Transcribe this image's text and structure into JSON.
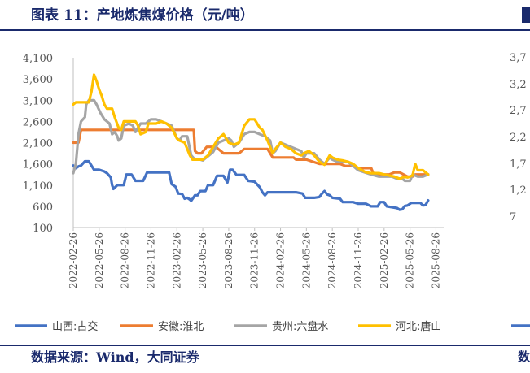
{
  "title": "图表 11：产地炼焦煤价格（元/吨）",
  "source": "数据来源：Wind，大同证券",
  "right_panel_peek": {
    "ticks": [
      "3,7",
      "3,2",
      "2,7",
      "2,2",
      "1,7",
      "1,2",
      "7"
    ],
    "source_fragment": "数"
  },
  "chart_data": {
    "type": "line",
    "title": "产地炼焦煤价格（元/吨）",
    "ylim": [
      100,
      4100
    ],
    "yticks": [
      100,
      600,
      1100,
      1600,
      2100,
      2600,
      3100,
      3600,
      4100
    ],
    "ytick_labels": [
      "100",
      "600",
      "1,100",
      "1,600",
      "2,100",
      "2,600",
      "3,100",
      "3,600",
      "4,100"
    ],
    "xticks": [
      "2022-02-26",
      "2022-05-26",
      "2022-08-26",
      "2022-11-26",
      "2023-02-26",
      "2023-05-26",
      "2023-08-26",
      "2023-11-26",
      "2024-02-26",
      "2024-05-26",
      "2024-08-26",
      "2024-11-26",
      "2025-02-26",
      "2025-05-26",
      "2025-08-26"
    ],
    "x_range": [
      0,
      14.3
    ],
    "legend_position": "bottom",
    "series": [
      {
        "name": "山西:古交",
        "color": "#4472c4",
        "points": [
          [
            0,
            1560
          ],
          [
            0.1,
            1500
          ],
          [
            0.2,
            1540
          ],
          [
            0.3,
            1560
          ],
          [
            0.45,
            1660
          ],
          [
            0.6,
            1660
          ],
          [
            0.7,
            1560
          ],
          [
            0.8,
            1460
          ],
          [
            1.0,
            1460
          ],
          [
            1.2,
            1420
          ],
          [
            1.3,
            1380
          ],
          [
            1.45,
            1280
          ],
          [
            1.5,
            1100
          ],
          [
            1.55,
            1010
          ],
          [
            1.7,
            1100
          ],
          [
            1.8,
            1100
          ],
          [
            1.95,
            1100
          ],
          [
            2.05,
            1350
          ],
          [
            2.25,
            1350
          ],
          [
            2.4,
            1200
          ],
          [
            2.7,
            1200
          ],
          [
            2.85,
            1400
          ],
          [
            3.7,
            1400
          ],
          [
            3.8,
            1120
          ],
          [
            3.95,
            1060
          ],
          [
            4.05,
            900
          ],
          [
            4.2,
            890
          ],
          [
            4.3,
            780
          ],
          [
            4.4,
            800
          ],
          [
            4.5,
            760
          ],
          [
            4.55,
            730
          ],
          [
            4.7,
            860
          ],
          [
            4.8,
            860
          ],
          [
            4.9,
            960
          ],
          [
            5.1,
            960
          ],
          [
            5.2,
            1100
          ],
          [
            5.4,
            1100
          ],
          [
            5.55,
            1320
          ],
          [
            5.8,
            1320
          ],
          [
            5.95,
            1160
          ],
          [
            6.05,
            1460
          ],
          [
            6.15,
            1460
          ],
          [
            6.3,
            1340
          ],
          [
            6.6,
            1340
          ],
          [
            6.75,
            1200
          ],
          [
            7.0,
            1180
          ],
          [
            7.2,
            1050
          ],
          [
            7.3,
            930
          ],
          [
            7.4,
            860
          ],
          [
            7.5,
            930
          ],
          [
            7.8,
            930
          ],
          [
            8.3,
            930
          ],
          [
            8.6,
            930
          ],
          [
            8.85,
            900
          ],
          [
            8.95,
            800
          ],
          [
            9.3,
            800
          ],
          [
            9.5,
            820
          ],
          [
            9.6,
            900
          ],
          [
            9.7,
            960
          ],
          [
            9.8,
            880
          ],
          [
            9.9,
            860
          ],
          [
            10.0,
            800
          ],
          [
            10.3,
            780
          ],
          [
            10.4,
            700
          ],
          [
            10.8,
            700
          ],
          [
            11.0,
            660
          ],
          [
            11.3,
            660
          ],
          [
            11.5,
            600
          ],
          [
            11.75,
            600
          ],
          [
            11.85,
            700
          ],
          [
            12.0,
            700
          ],
          [
            12.1,
            600
          ],
          [
            12.5,
            560
          ],
          [
            12.6,
            520
          ],
          [
            12.7,
            530
          ],
          [
            12.8,
            610
          ],
          [
            12.9,
            620
          ],
          [
            13.05,
            680
          ],
          [
            13.4,
            680
          ],
          [
            13.5,
            620
          ],
          [
            13.6,
            630
          ],
          [
            13.7,
            740
          ]
        ]
      },
      {
        "name": "安徽:淮北",
        "color": "#ed7d31",
        "points": [
          [
            0,
            2100
          ],
          [
            0.2,
            2100
          ],
          [
            0.3,
            2400
          ],
          [
            1.4,
            2400
          ],
          [
            2.4,
            2400
          ],
          [
            3.5,
            2400
          ],
          [
            4.2,
            2400
          ],
          [
            4.65,
            2400
          ],
          [
            4.7,
            1900
          ],
          [
            4.8,
            1850
          ],
          [
            4.95,
            1850
          ],
          [
            5.15,
            2000
          ],
          [
            5.5,
            2000
          ],
          [
            5.8,
            1850
          ],
          [
            6.0,
            1850
          ],
          [
            6.4,
            1850
          ],
          [
            6.6,
            1950
          ],
          [
            7.5,
            1950
          ],
          [
            7.7,
            1750
          ],
          [
            8.0,
            1750
          ],
          [
            8.5,
            1750
          ],
          [
            8.6,
            1700
          ],
          [
            9.0,
            1700
          ],
          [
            9.5,
            1600
          ],
          [
            10.3,
            1600
          ],
          [
            10.5,
            1550
          ],
          [
            10.8,
            1550
          ],
          [
            11.0,
            1500
          ],
          [
            11.5,
            1500
          ],
          [
            11.6,
            1350
          ],
          [
            12.2,
            1350
          ],
          [
            12.4,
            1400
          ],
          [
            12.6,
            1400
          ],
          [
            12.9,
            1300
          ],
          [
            13.1,
            1300
          ],
          [
            13.2,
            1350
          ],
          [
            13.7,
            1350
          ]
        ]
      },
      {
        "name": "贵州:六盘水",
        "color": "#a5a5a5",
        "points": [
          [
            0,
            1380
          ],
          [
            0.1,
            1600
          ],
          [
            0.2,
            2300
          ],
          [
            0.3,
            2600
          ],
          [
            0.45,
            2700
          ],
          [
            0.5,
            3000
          ],
          [
            0.6,
            3100
          ],
          [
            0.8,
            3100
          ],
          [
            0.9,
            3000
          ],
          [
            1.05,
            2800
          ],
          [
            1.2,
            2650
          ],
          [
            1.4,
            2550
          ],
          [
            1.5,
            2300
          ],
          [
            1.6,
            2350
          ],
          [
            1.7,
            2250
          ],
          [
            1.75,
            2150
          ],
          [
            1.85,
            2200
          ],
          [
            1.95,
            2500
          ],
          [
            2.15,
            2550
          ],
          [
            2.3,
            2500
          ],
          [
            2.4,
            2350
          ],
          [
            2.55,
            2500
          ],
          [
            2.6,
            2550
          ],
          [
            2.8,
            2550
          ],
          [
            2.9,
            2600
          ],
          [
            3.0,
            2650
          ],
          [
            3.2,
            2650
          ],
          [
            3.4,
            2600
          ],
          [
            3.6,
            2550
          ],
          [
            3.8,
            2500
          ],
          [
            4.0,
            2200
          ],
          [
            4.1,
            2150
          ],
          [
            4.2,
            2250
          ],
          [
            4.4,
            2250
          ],
          [
            4.55,
            1800
          ],
          [
            4.7,
            1700
          ],
          [
            4.9,
            1700
          ],
          [
            5.0,
            1680
          ],
          [
            5.2,
            1780
          ],
          [
            5.4,
            1880
          ],
          [
            5.6,
            2100
          ],
          [
            5.8,
            2150
          ],
          [
            6.0,
            2200
          ],
          [
            6.1,
            2150
          ],
          [
            6.2,
            2000
          ],
          [
            6.4,
            2100
          ],
          [
            6.6,
            2300
          ],
          [
            6.8,
            2350
          ],
          [
            7.0,
            2350
          ],
          [
            7.2,
            2300
          ],
          [
            7.4,
            2250
          ],
          [
            7.6,
            2150
          ],
          [
            7.7,
            1850
          ],
          [
            7.8,
            1900
          ],
          [
            8.0,
            2100
          ],
          [
            8.2,
            2050
          ],
          [
            8.4,
            2000
          ],
          [
            8.6,
            1950
          ],
          [
            8.8,
            1900
          ],
          [
            8.9,
            1750
          ],
          [
            9.0,
            1850
          ],
          [
            9.3,
            1850
          ],
          [
            9.5,
            1700
          ],
          [
            9.7,
            1600
          ],
          [
            9.9,
            1750
          ],
          [
            10.0,
            1700
          ],
          [
            10.2,
            1650
          ],
          [
            10.6,
            1650
          ],
          [
            10.8,
            1550
          ],
          [
            11.0,
            1450
          ],
          [
            11.5,
            1350
          ],
          [
            11.8,
            1300
          ],
          [
            12.3,
            1300
          ],
          [
            12.5,
            1250
          ],
          [
            12.7,
            1250
          ],
          [
            12.8,
            1200
          ],
          [
            13.0,
            1200
          ],
          [
            13.1,
            1350
          ],
          [
            13.3,
            1300
          ],
          [
            13.5,
            1300
          ],
          [
            13.7,
            1350
          ]
        ]
      },
      {
        "name": "河北:唐山",
        "color": "#ffc000",
        "points": [
          [
            0,
            3000
          ],
          [
            0.1,
            3050
          ],
          [
            0.6,
            3050
          ],
          [
            0.7,
            3300
          ],
          [
            0.8,
            3700
          ],
          [
            0.9,
            3550
          ],
          [
            1.0,
            3350
          ],
          [
            1.1,
            3200
          ],
          [
            1.2,
            3000
          ],
          [
            1.3,
            2900
          ],
          [
            1.5,
            2900
          ],
          [
            1.6,
            2700
          ],
          [
            1.75,
            2450
          ],
          [
            1.85,
            2400
          ],
          [
            1.95,
            2600
          ],
          [
            2.4,
            2600
          ],
          [
            2.5,
            2500
          ],
          [
            2.6,
            2300
          ],
          [
            2.8,
            2350
          ],
          [
            2.9,
            2550
          ],
          [
            3.2,
            2550
          ],
          [
            3.4,
            2600
          ],
          [
            3.6,
            2550
          ],
          [
            3.8,
            2450
          ],
          [
            4.0,
            2200
          ],
          [
            4.1,
            2150
          ],
          [
            4.3,
            2100
          ],
          [
            4.5,
            1800
          ],
          [
            4.6,
            1700
          ],
          [
            4.8,
            1700
          ],
          [
            5.0,
            1700
          ],
          [
            5.2,
            1800
          ],
          [
            5.4,
            2000
          ],
          [
            5.6,
            2200
          ],
          [
            5.8,
            2300
          ],
          [
            5.9,
            2200
          ],
          [
            6.0,
            2100
          ],
          [
            6.2,
            2050
          ],
          [
            6.4,
            2100
          ],
          [
            6.6,
            2500
          ],
          [
            6.8,
            2650
          ],
          [
            7.0,
            2650
          ],
          [
            7.2,
            2450
          ],
          [
            7.3,
            2400
          ],
          [
            7.5,
            2150
          ],
          [
            7.7,
            1850
          ],
          [
            7.8,
            1950
          ],
          [
            8.0,
            2100
          ],
          [
            8.2,
            2000
          ],
          [
            8.4,
            1950
          ],
          [
            8.6,
            1850
          ],
          [
            8.8,
            1800
          ],
          [
            8.9,
            1850
          ],
          [
            9.1,
            1900
          ],
          [
            9.3,
            1800
          ],
          [
            9.5,
            1650
          ],
          [
            9.7,
            1580
          ],
          [
            9.9,
            1800
          ],
          [
            10.0,
            1750
          ],
          [
            10.2,
            1700
          ],
          [
            10.4,
            1680
          ],
          [
            10.6,
            1650
          ],
          [
            10.8,
            1600
          ],
          [
            11.0,
            1500
          ],
          [
            11.3,
            1400
          ],
          [
            11.5,
            1380
          ],
          [
            11.8,
            1380
          ],
          [
            12.0,
            1350
          ],
          [
            12.4,
            1300
          ],
          [
            12.6,
            1250
          ],
          [
            12.8,
            1300
          ],
          [
            12.9,
            1280
          ],
          [
            13.0,
            1300
          ],
          [
            13.1,
            1330
          ],
          [
            13.2,
            1600
          ],
          [
            13.3,
            1450
          ],
          [
            13.5,
            1450
          ],
          [
            13.7,
            1350
          ]
        ]
      }
    ]
  }
}
